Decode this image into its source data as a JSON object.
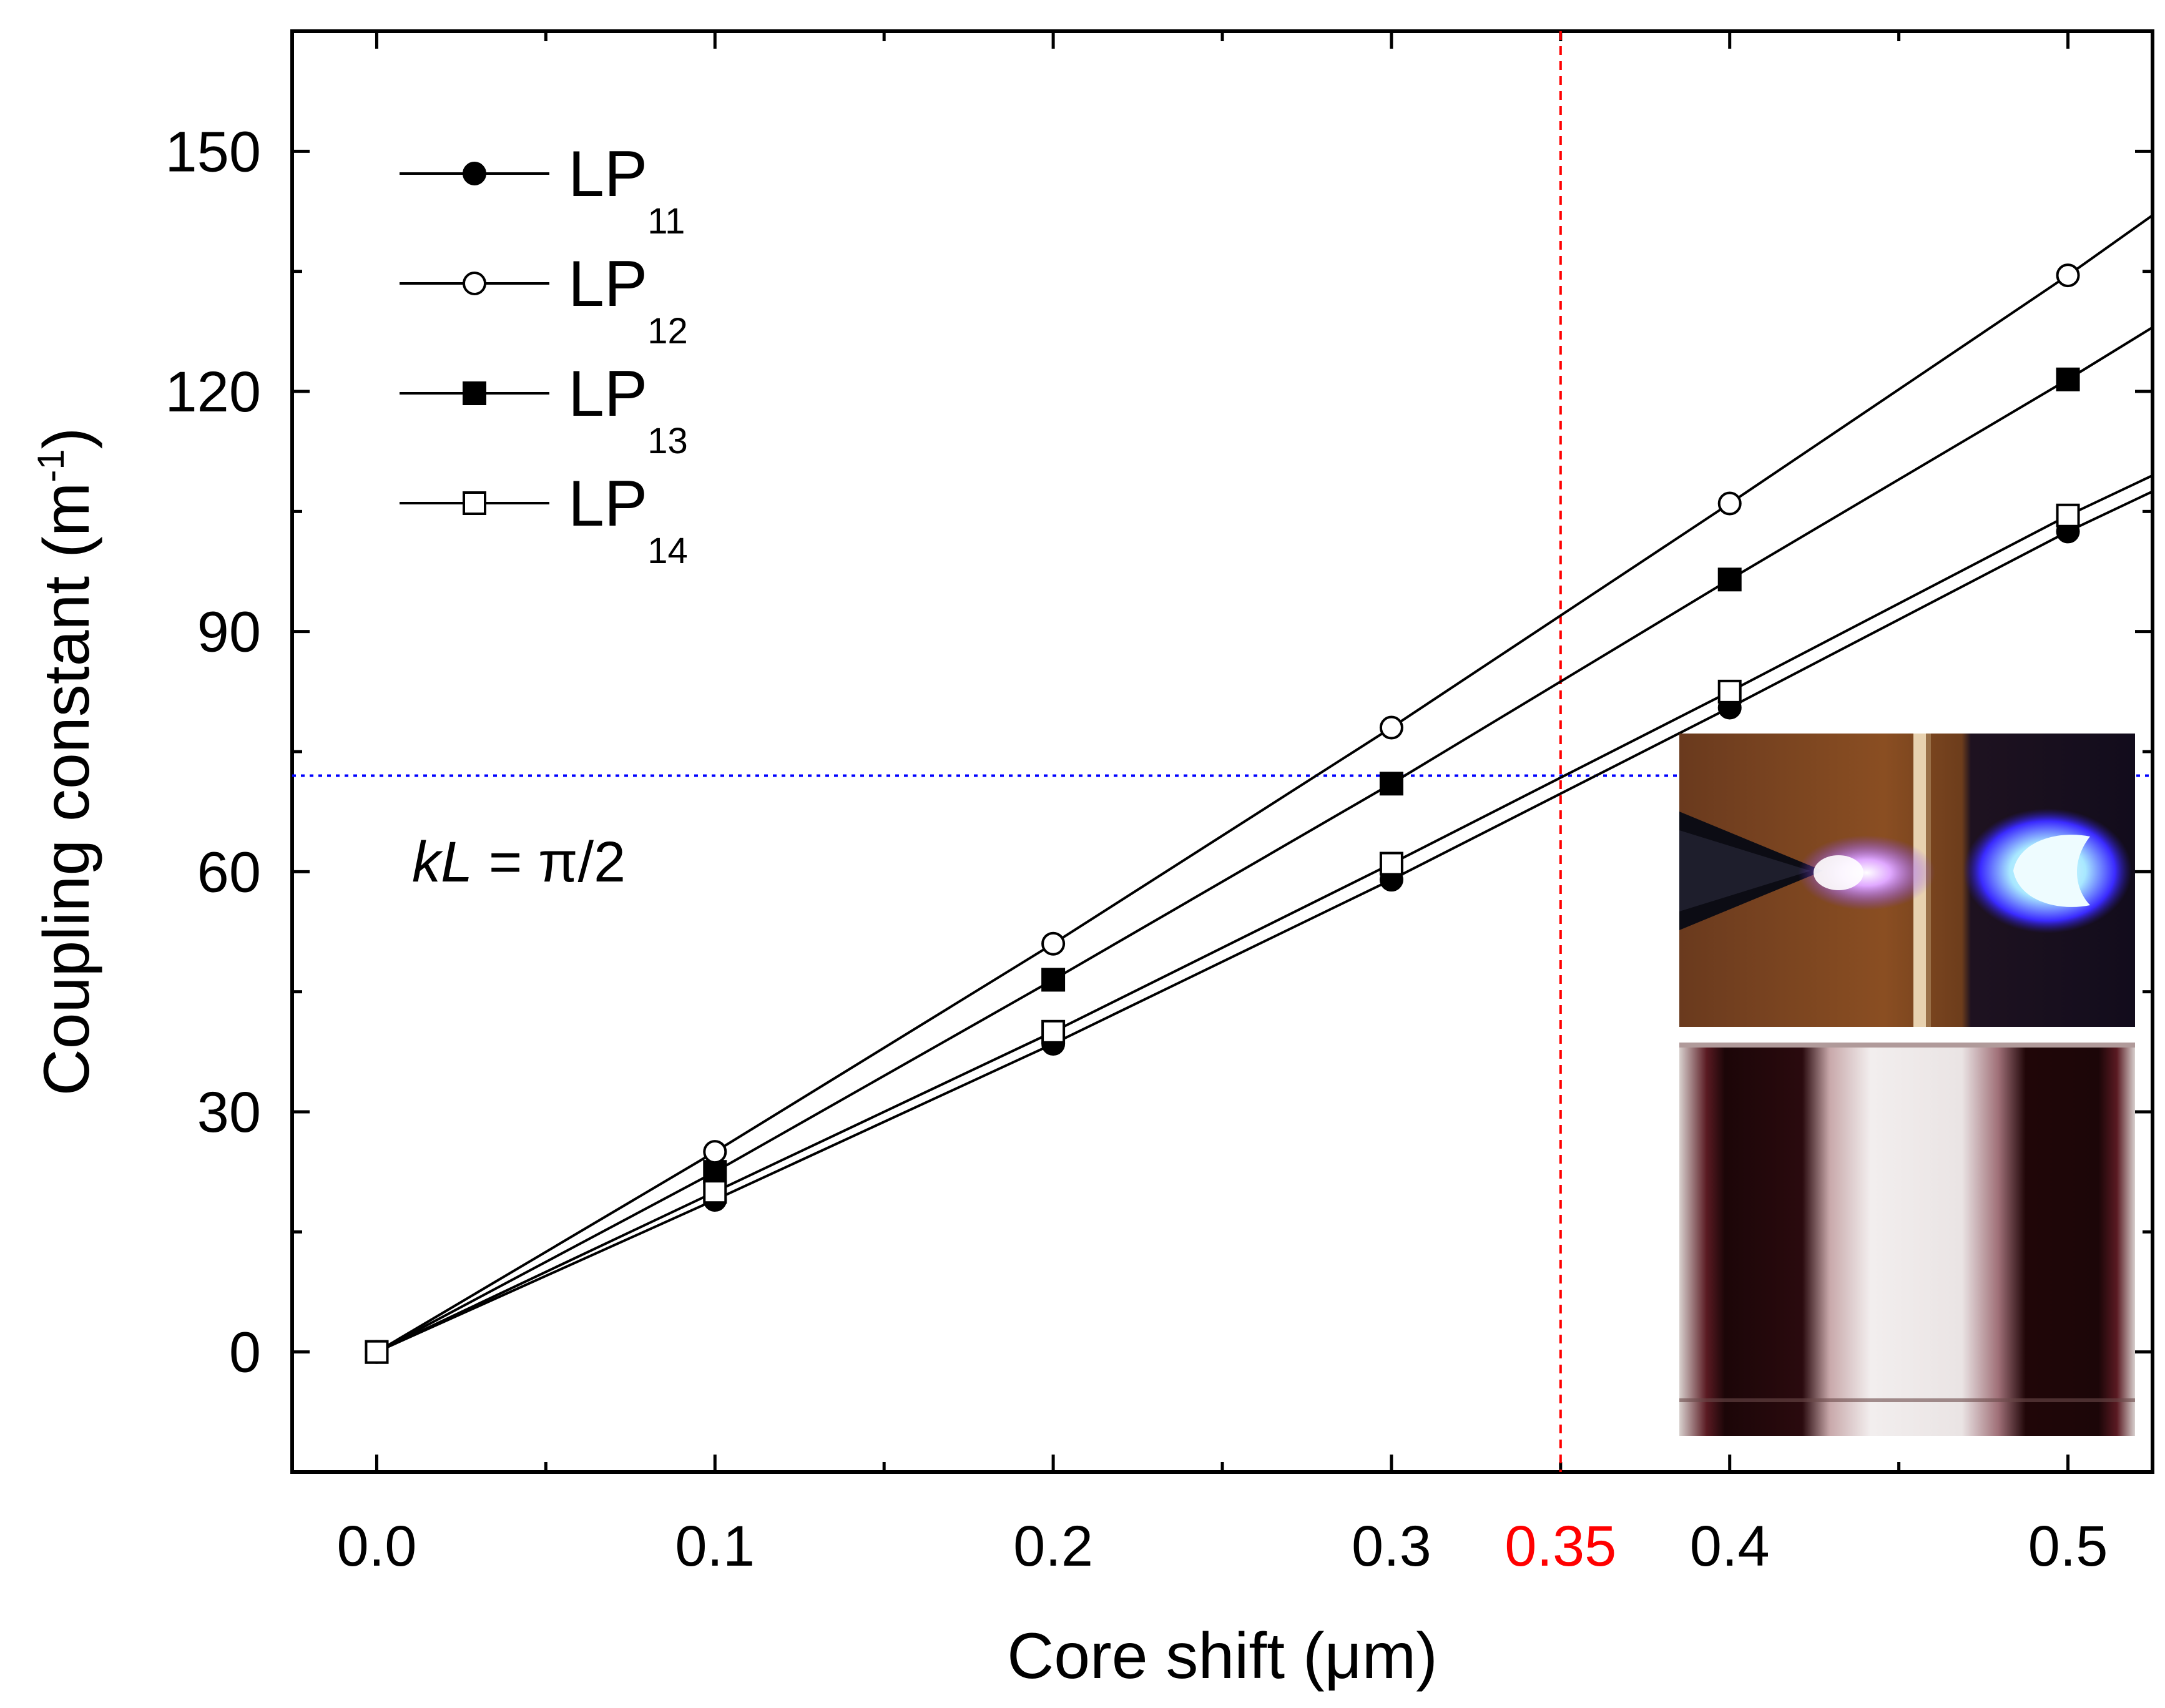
{
  "chart_data": {
    "type": "line",
    "title": "",
    "xlabel": "Core shift (μm)",
    "ylabel": "Coupling constant (m",
    "ylabel_sup": "-1",
    "ylabel_close": ")",
    "xlim": [
      -0.025,
      0.525
    ],
    "ylim": [
      -15,
      165
    ],
    "x_ticks": [
      0.0,
      0.1,
      0.2,
      0.3,
      0.4,
      0.5
    ],
    "x_tick_labels": [
      "0.0",
      "0.1",
      "0.2",
      "0.3",
      "0.4",
      "0.5"
    ],
    "y_ticks": [
      0,
      30,
      60,
      90,
      120,
      150
    ],
    "y_tick_labels": [
      "0",
      "30",
      "60",
      "90",
      "120",
      "150"
    ],
    "x": [
      0.0,
      0.1,
      0.2,
      0.3,
      0.4,
      0.5
    ],
    "series": [
      {
        "name": "LP11",
        "label_main": "LP",
        "label_sub": "11",
        "marker": "filled-circle",
        "values": [
          0,
          19,
          38.5,
          59,
          80.5,
          102.5
        ],
        "fit_end": 107.5
      },
      {
        "name": "LP12",
        "label_main": "LP",
        "label_sub": "12",
        "marker": "open-circle",
        "values": [
          0,
          25,
          51,
          78,
          106,
          134.5
        ],
        "fit_end": 142
      },
      {
        "name": "LP13",
        "label_main": "LP",
        "label_sub": "13",
        "marker": "filled-square",
        "values": [
          0,
          22.5,
          46.5,
          71,
          96.5,
          121.5
        ],
        "fit_end": 128
      },
      {
        "name": "LP14",
        "label_main": "LP",
        "label_sub": "14",
        "marker": "open-square",
        "values": [
          0,
          20,
          40,
          61,
          82.5,
          104.5
        ],
        "fit_end": 109.5
      }
    ],
    "vline": {
      "x": 0.35,
      "label": "0.35",
      "color": "#ff0000"
    },
    "hline": {
      "y": 72,
      "color": "#0000ff"
    },
    "annotation": {
      "italic": "kL",
      "rest": " = π/2",
      "color": "#0000ff"
    },
    "legend": "top-left",
    "inset": {
      "top": "plasma discharge photograph",
      "bottom": "fiber microscope photograph"
    }
  }
}
